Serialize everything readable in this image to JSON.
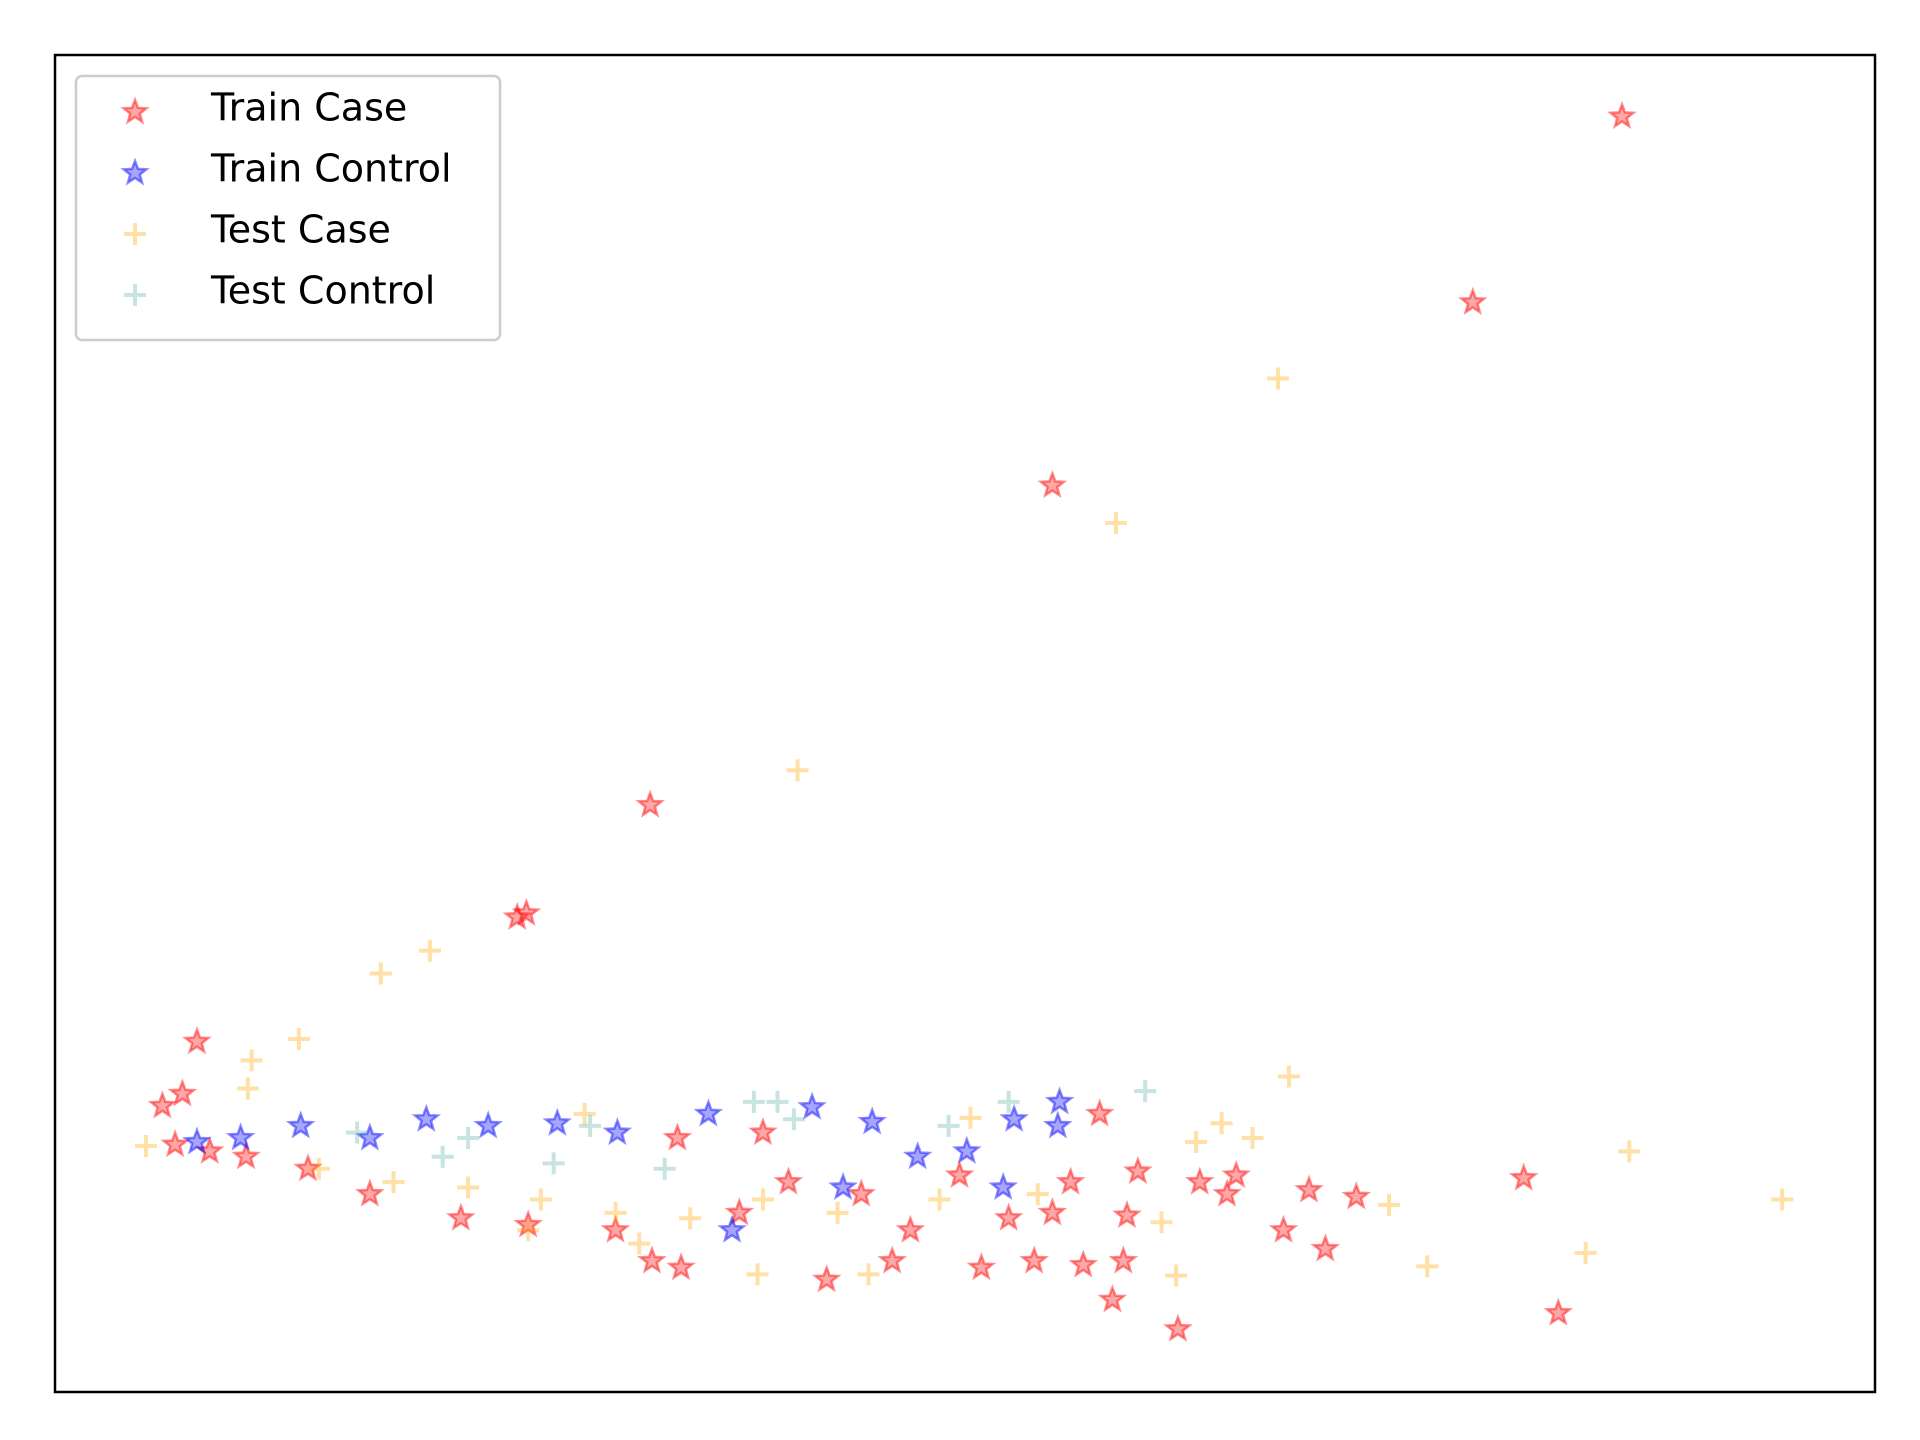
{
  "chart_data": {
    "type": "scatter",
    "legend": "upper left",
    "xlim": [
      0,
      100
    ],
    "ylim": [
      0,
      100
    ],
    "series": [
      {
        "name": "Train Case",
        "color": "#ff0000",
        "marker": "star",
        "x": [
          86.1,
          77.9,
          54.8,
          32.7,
          25.4,
          25.9,
          7.8,
          7.0,
          5.9,
          57.4,
          80.7,
          82.6,
          61.7,
          58.1,
          68.9,
          71.5,
          67.5,
          69.8,
          58.7,
          56.5,
          53.8,
          50.9,
          46.0,
          42.4,
          34.4,
          32.8,
          6.6,
          62.9,
          58.9,
          54.8,
          64.4,
          64.9,
          59.5,
          55.8,
          49.7,
          44.3,
          40.3,
          37.6,
          30.8,
          26.0,
          22.3,
          17.3,
          13.9,
          10.5,
          8.5,
          38.9,
          34.2,
          47.0,
          52.4
        ],
        "y": [
          95.4,
          81.5,
          67.8,
          43.9,
          35.5,
          35.8,
          26.2,
          22.3,
          21.4,
          20.8,
          16.0,
          5.9,
          4.7,
          6.9,
          15.1,
          14.6,
          12.1,
          10.7,
          9.8,
          9.5,
          9.8,
          9.3,
          9.8,
          8.4,
          9.3,
          9.8,
          18.5,
          15.7,
          13.2,
          13.4,
          14.8,
          16.2,
          16.5,
          15.7,
          16.2,
          14.8,
          15.7,
          13.4,
          12.1,
          12.5,
          13.0,
          14.8,
          16.7,
          17.6,
          18.0,
          19.4,
          19.0,
          12.1,
          13.0
        ]
      },
      {
        "name": "Train Control",
        "color": "#0000ff",
        "marker": "star",
        "x": [
          55.2,
          55.1,
          52.7,
          44.9,
          41.6,
          35.9,
          30.9,
          27.6,
          23.8,
          20.4,
          13.5,
          10.2,
          37.2,
          43.3,
          47.4,
          52.1,
          50.1,
          17.3,
          7.8
        ],
        "y": [
          21.7,
          19.9,
          20.4,
          20.2,
          21.3,
          20.8,
          19.4,
          20.1,
          19.9,
          20.4,
          19.9,
          19.0,
          12.1,
          15.3,
          17.6,
          15.3,
          18.0,
          19.0,
          18.7
        ]
      },
      {
        "name": "Test Case",
        "color": "#ffa500",
        "marker": "plus",
        "x": [
          67.2,
          58.3,
          40.8,
          20.6,
          17.9,
          13.4,
          10.8,
          10.6,
          5.0,
          67.8,
          86.5,
          94.9,
          84.1,
          75.4,
          73.3,
          61.6,
          60.8,
          64.1,
          65.8,
          62.7,
          50.3,
          44.7,
          38.6,
          29.1,
          18.6,
          22.7,
          26.7,
          30.8,
          34.9,
          38.9,
          43.0,
          32.1,
          14.5,
          26.0,
          54.0,
          48.6
        ],
        "y": [
          75.8,
          65.0,
          46.5,
          33.0,
          31.3,
          26.4,
          24.8,
          22.7,
          18.4,
          23.6,
          18.0,
          14.4,
          10.4,
          9.4,
          14.0,
          8.7,
          12.7,
          20.1,
          19.0,
          18.7,
          20.5,
          8.8,
          8.8,
          20.8,
          15.7,
          15.3,
          14.4,
          13.4,
          13.0,
          14.4,
          13.4,
          11.1,
          16.7,
          12.1,
          14.8,
          14.4
        ]
      },
      {
        "name": "Test Control",
        "color": "#5fb3a8",
        "marker": "plus",
        "x": [
          59.9,
          52.4,
          39.7,
          38.4,
          40.6,
          29.4,
          22.7,
          16.6,
          49.1,
          33.5,
          27.4,
          21.3
        ],
        "y": [
          22.5,
          21.7,
          21.7,
          21.7,
          20.4,
          19.9,
          19.0,
          19.4,
          19.9,
          16.7,
          17.1,
          17.6
        ]
      }
    ]
  }
}
